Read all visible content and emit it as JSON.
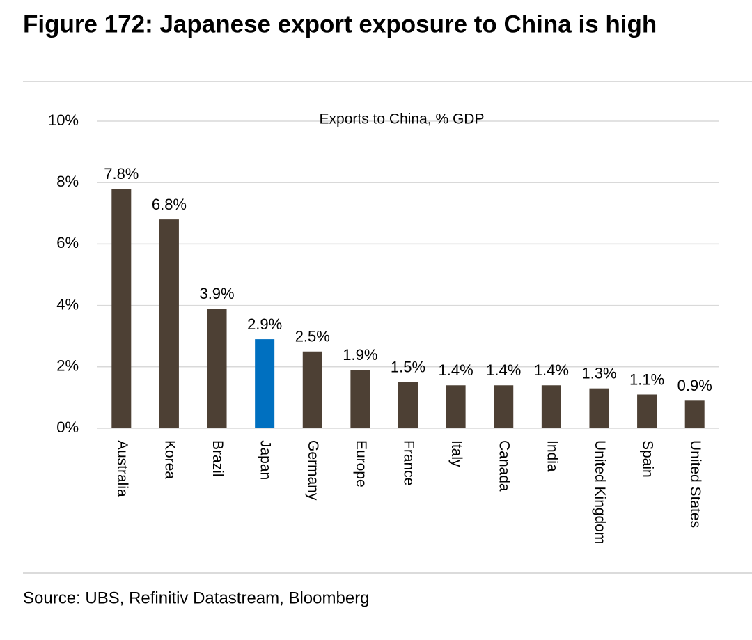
{
  "title": "Figure 172: Japanese export exposure to China is high",
  "source": "Source: UBS, Refinitiv Datastream, Bloomberg",
  "chart_data": {
    "type": "bar",
    "subtitle": "Exports to China, % GDP",
    "categories": [
      "Australia",
      "Korea",
      "Brazil",
      "Japan",
      "Germany",
      "Europe",
      "France",
      "Italy",
      "Canada",
      "India",
      "United Kingdom",
      "Spain",
      "United States"
    ],
    "values": [
      7.8,
      6.8,
      3.9,
      2.9,
      2.5,
      1.9,
      1.5,
      1.4,
      1.4,
      1.4,
      1.3,
      1.1,
      0.9
    ],
    "value_labels": [
      "7.8%",
      "6.8%",
      "3.9%",
      "2.9%",
      "2.5%",
      "1.9%",
      "1.5%",
      "1.4%",
      "1.4%",
      "1.4%",
      "1.3%",
      "1.1%",
      "0.9%"
    ],
    "colors": [
      "#4d4034",
      "#4d4034",
      "#4d4034",
      "#0070c0",
      "#4d4034",
      "#4d4034",
      "#4d4034",
      "#4d4034",
      "#4d4034",
      "#4d4034",
      "#4d4034",
      "#4d4034",
      "#4d4034"
    ],
    "ylim": [
      0,
      10
    ],
    "yticks": [
      {
        "value": 0,
        "label": "0%"
      },
      {
        "value": 2,
        "label": "2%"
      },
      {
        "value": 4,
        "label": "4%"
      },
      {
        "value": 6,
        "label": "6%"
      },
      {
        "value": 8,
        "label": "8%"
      },
      {
        "value": 10,
        "label": "10%"
      }
    ],
    "grid": true
  }
}
